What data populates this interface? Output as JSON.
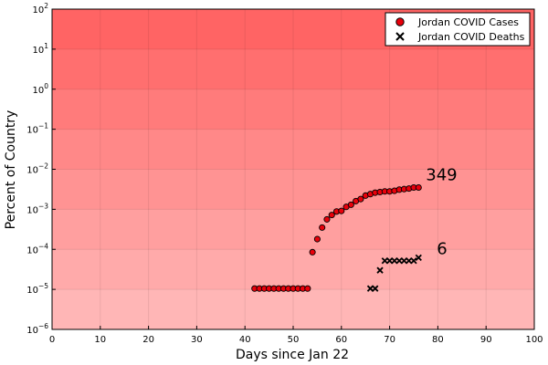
{
  "chart_data": {
    "type": "scatter",
    "xlabel": "Days since Jan 22",
    "ylabel": "Percent of Country",
    "xlim": [
      0,
      100
    ],
    "ylim": [
      1e-06,
      100
    ],
    "y_scale": "log10",
    "grid": true,
    "legend_position": "top-right",
    "x_ticks": [
      0,
      10,
      20,
      30,
      40,
      50,
      60,
      70,
      80,
      90,
      100
    ],
    "x_tick_labels": [
      "0",
      "10",
      "20",
      "30",
      "40",
      "50",
      "60",
      "70",
      "80",
      "90",
      "100"
    ],
    "y_ticks": [
      {
        "value": 1e-06,
        "base": "10",
        "exp": "−6"
      },
      {
        "value": 1e-05,
        "base": "10",
        "exp": "−5"
      },
      {
        "value": 0.0001,
        "base": "10",
        "exp": "−4"
      },
      {
        "value": 0.001,
        "base": "10",
        "exp": "−3"
      },
      {
        "value": 0.01,
        "base": "10",
        "exp": "−2"
      },
      {
        "value": 0.1,
        "base": "10",
        "exp": "−1"
      },
      {
        "value": 1,
        "base": "10",
        "exp": "0"
      },
      {
        "value": 10,
        "base": "10",
        "exp": "1"
      },
      {
        "value": 100,
        "base": "10",
        "exp": "2"
      }
    ],
    "background_bands": {
      "colors_top_to_bottom": [
        "#ff6464",
        "#ff6f6f",
        "#ff7b7b",
        "#ff8888",
        "#ff9393",
        "#ff9f9f",
        "#ffaaaa",
        "#ffb6b6"
      ]
    },
    "series": [
      {
        "name": "Jordan COVID Cases",
        "marker": "circle",
        "color": "#e8000b",
        "points": [
          [
            42,
            1.05e-05
          ],
          [
            43,
            1.05e-05
          ],
          [
            44,
            1.05e-05
          ],
          [
            45,
            1.05e-05
          ],
          [
            46,
            1.05e-05
          ],
          [
            47,
            1.05e-05
          ],
          [
            48,
            1.05e-05
          ],
          [
            49,
            1.05e-05
          ],
          [
            50,
            1.05e-05
          ],
          [
            51,
            1.05e-05
          ],
          [
            52,
            1.05e-05
          ],
          [
            53,
            1.05e-05
          ],
          [
            54,
            8.5e-05
          ],
          [
            55,
            0.00018
          ],
          [
            56,
            0.00035
          ],
          [
            57,
            0.00056
          ],
          [
            58,
            0.00072
          ],
          [
            59,
            0.00088
          ],
          [
            60,
            0.00091
          ],
          [
            61,
            0.00115
          ],
          [
            62,
            0.0013
          ],
          [
            63,
            0.0016
          ],
          [
            64,
            0.0018
          ],
          [
            65,
            0.0022
          ],
          [
            66,
            0.0024
          ],
          [
            67,
            0.0026
          ],
          [
            68,
            0.0027
          ],
          [
            69,
            0.0028
          ],
          [
            70,
            0.0028
          ],
          [
            71,
            0.0029
          ],
          [
            72,
            0.0031
          ],
          [
            73,
            0.0032
          ],
          [
            74,
            0.0033
          ],
          [
            75,
            0.0035
          ],
          [
            76,
            0.0035
          ]
        ],
        "end_label": "349"
      },
      {
        "name": "Jordan COVID Deaths",
        "marker": "x",
        "color": "#000000",
        "points": [
          [
            66,
            1.05e-05
          ],
          [
            67,
            1.05e-05
          ],
          [
            68,
            3e-05
          ],
          [
            69,
            5.2e-05
          ],
          [
            70,
            5.2e-05
          ],
          [
            71,
            5.2e-05
          ],
          [
            72,
            5.2e-05
          ],
          [
            73,
            5.2e-05
          ],
          [
            74,
            5.2e-05
          ],
          [
            75,
            5.2e-05
          ],
          [
            76,
            6.2e-05
          ]
        ],
        "end_label": "6"
      }
    ]
  }
}
